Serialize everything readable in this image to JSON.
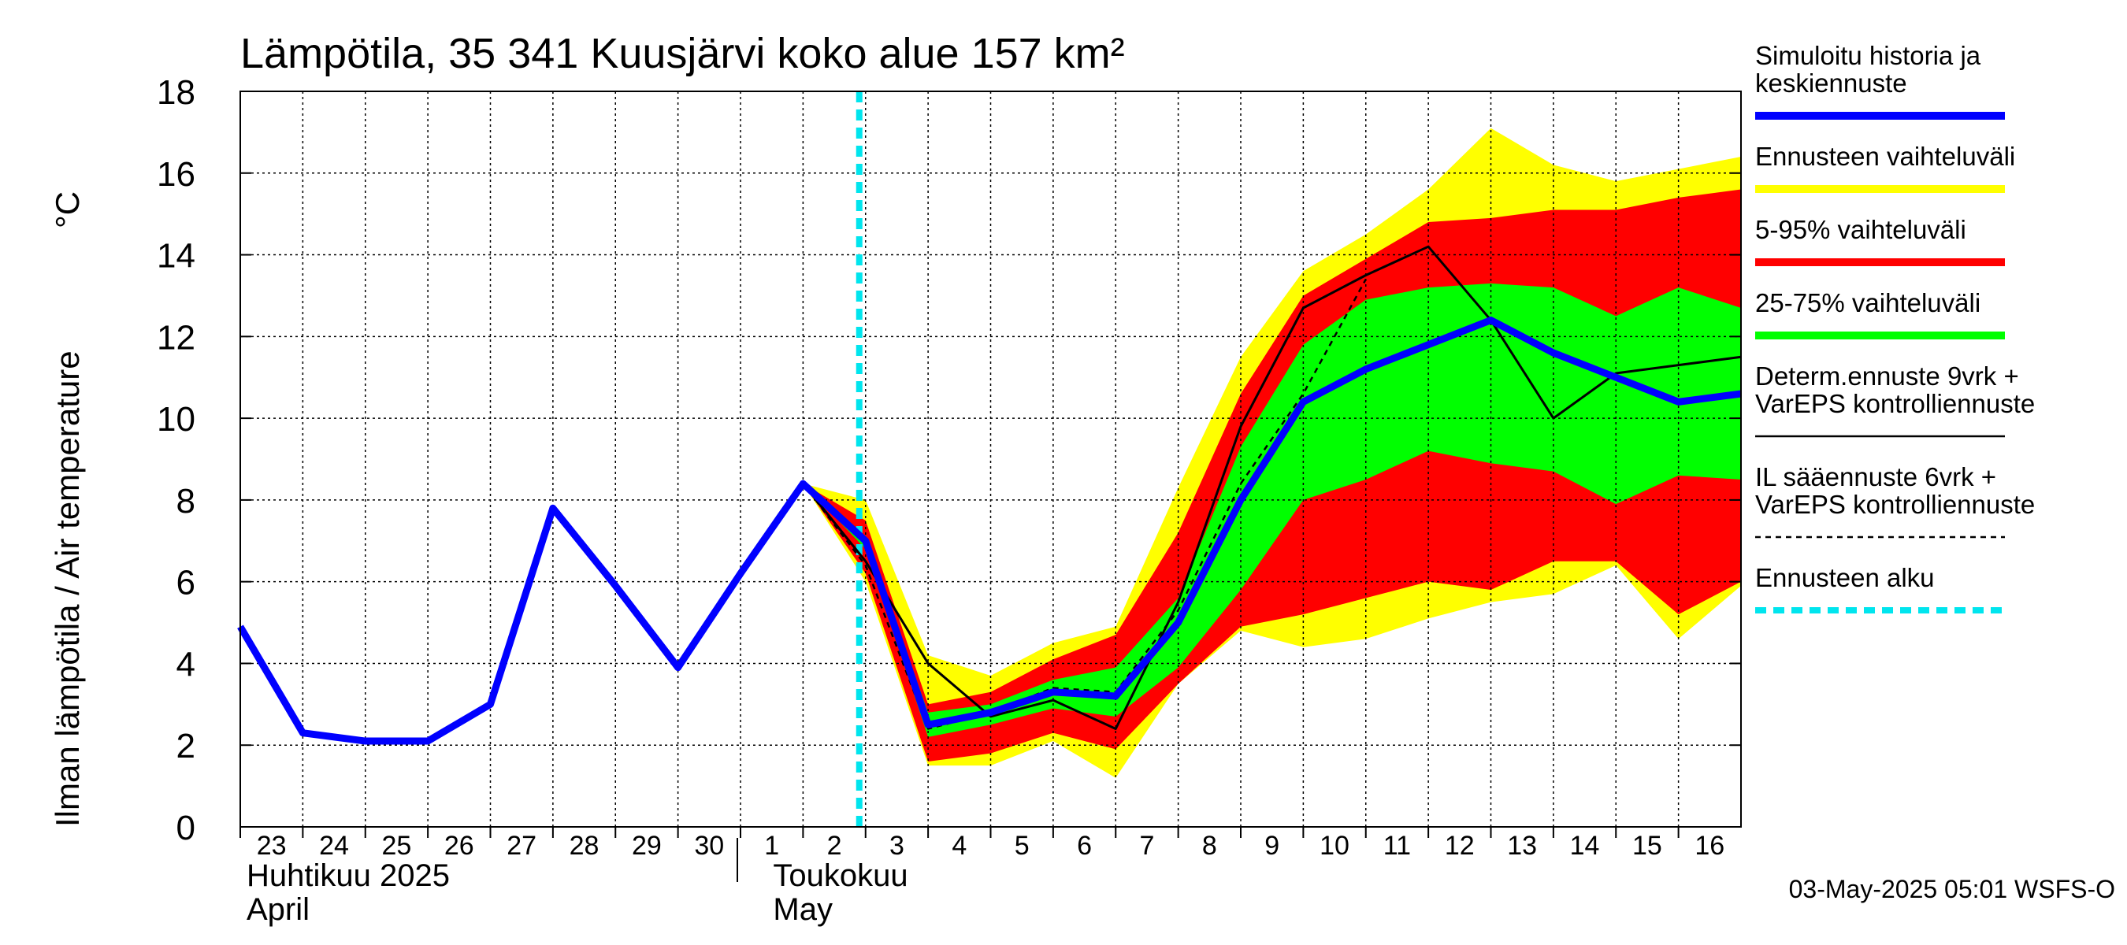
{
  "chart_data": {
    "type": "line",
    "title": "Lämpötila, 35 341 Kuusjärvi koko alue 157 km²",
    "ylabel": "Ilman lämpötila / Air temperature",
    "yunit": "°C",
    "ylim": [
      0,
      18
    ],
    "yticks": [
      0,
      2,
      4,
      6,
      8,
      10,
      12,
      14,
      16,
      18
    ],
    "grid": true,
    "legend_position": "right",
    "x_tick_labels": [
      "23",
      "24",
      "25",
      "26",
      "27",
      "28",
      "29",
      "30",
      "1",
      "2",
      "3",
      "4",
      "5",
      "6",
      "7",
      "8",
      "9",
      "10",
      "11",
      "12",
      "13",
      "14",
      "15",
      "16"
    ],
    "month_labels": [
      {
        "fi": "Huhtikuu 2025",
        "en": "April"
      },
      {
        "fi": "Toukokuu",
        "en": "May"
      }
    ],
    "forecast_start": "2025-05-03",
    "x_dates": [
      "2025-04-23",
      "2025-04-24",
      "2025-04-25",
      "2025-04-26",
      "2025-04-27",
      "2025-04-28",
      "2025-04-29",
      "2025-04-30",
      "2025-05-01",
      "2025-05-02",
      "2025-05-03",
      "2025-05-04",
      "2025-05-05",
      "2025-05-06",
      "2025-05-07",
      "2025-05-08",
      "2025-05-09",
      "2025-05-10",
      "2025-05-11",
      "2025-05-12",
      "2025-05-13",
      "2025-05-14",
      "2025-05-15",
      "2025-05-16",
      "2025-05-17"
    ],
    "series": [
      {
        "name": "Simuloitu historia ja keskiennuste",
        "color": "#0000ff",
        "x": [
          "2025-04-23",
          "2025-04-24",
          "2025-04-25",
          "2025-04-26",
          "2025-04-27",
          "2025-04-28",
          "2025-04-29",
          "2025-04-30",
          "2025-05-01",
          "2025-05-02",
          "2025-05-03",
          "2025-05-04",
          "2025-05-05",
          "2025-05-06",
          "2025-05-07",
          "2025-05-08",
          "2025-05-09",
          "2025-05-10",
          "2025-05-11",
          "2025-05-12",
          "2025-05-13",
          "2025-05-14",
          "2025-05-15",
          "2025-05-16",
          "2025-05-17"
        ],
        "values": [
          4.9,
          2.3,
          2.1,
          2.1,
          3.0,
          7.8,
          5.9,
          3.9,
          6.2,
          8.4,
          7.0,
          2.5,
          2.8,
          3.3,
          3.2,
          5.0,
          8.0,
          10.4,
          11.2,
          11.8,
          12.4,
          11.6,
          11.0,
          10.4,
          10.6
        ]
      },
      {
        "name": "Determ.ennuste 9vrk + VarEPS kontrolliennuste",
        "color": "#000000",
        "x": [
          "2025-05-01",
          "2025-05-02",
          "2025-05-03",
          "2025-05-04",
          "2025-05-05",
          "2025-05-06",
          "2025-05-07",
          "2025-05-08",
          "2025-05-09",
          "2025-05-10",
          "2025-05-11",
          "2025-05-12",
          "2025-05-13",
          "2025-05-14",
          "2025-05-15",
          "2025-05-16",
          "2025-05-17"
        ],
        "values": [
          6.2,
          8.4,
          6.5,
          4.0,
          2.7,
          3.1,
          2.4,
          5.5,
          9.8,
          12.7,
          13.5,
          14.2,
          12.4,
          10.0,
          11.1,
          11.3,
          11.5
        ]
      },
      {
        "name": "IL sääennuste 6vrk + VarEPS kontrolliennuste",
        "color": "#000000",
        "dashed": true,
        "x": [
          "2025-05-02",
          "2025-05-03",
          "2025-05-04",
          "2025-05-05",
          "2025-05-06",
          "2025-05-07",
          "2025-05-08",
          "2025-05-09",
          "2025-05-10",
          "2025-05-11"
        ],
        "values": [
          8.4,
          6.4,
          2.4,
          2.8,
          3.4,
          3.3,
          5.3,
          8.4,
          10.6,
          13.4
        ]
      }
    ],
    "bands": [
      {
        "name": "Ennusteen vaihteluväli",
        "color": "#ffff00",
        "x": [
          "2025-05-02",
          "2025-05-03",
          "2025-05-04",
          "2025-05-05",
          "2025-05-06",
          "2025-05-07",
          "2025-05-08",
          "2025-05-09",
          "2025-05-10",
          "2025-05-11",
          "2025-05-12",
          "2025-05-13",
          "2025-05-14",
          "2025-05-15",
          "2025-05-16",
          "2025-05-17"
        ],
        "upper": [
          8.4,
          8.0,
          4.2,
          3.7,
          4.5,
          4.9,
          8.3,
          11.5,
          13.6,
          14.5,
          15.6,
          17.1,
          16.2,
          15.8,
          16.1,
          16.4
        ],
        "lower": [
          8.4,
          6.0,
          1.5,
          1.5,
          2.1,
          1.2,
          3.5,
          4.8,
          4.4,
          4.6,
          5.1,
          5.5,
          5.7,
          6.4,
          4.6,
          5.9
        ]
      },
      {
        "name": "5-95% vaihteluväli",
        "color": "#ff0000",
        "x": [
          "2025-05-02",
          "2025-05-03",
          "2025-05-04",
          "2025-05-05",
          "2025-05-06",
          "2025-05-07",
          "2025-05-08",
          "2025-05-09",
          "2025-05-10",
          "2025-05-11",
          "2025-05-12",
          "2025-05-13",
          "2025-05-14",
          "2025-05-15",
          "2025-05-16",
          "2025-05-17"
        ],
        "upper": [
          8.4,
          7.5,
          3.0,
          3.3,
          4.1,
          4.7,
          7.2,
          10.6,
          13.0,
          13.9,
          14.8,
          14.9,
          15.1,
          15.1,
          15.4,
          15.6
        ],
        "lower": [
          8.4,
          6.2,
          1.6,
          1.8,
          2.3,
          1.9,
          3.5,
          4.9,
          5.2,
          5.6,
          6.0,
          5.8,
          6.5,
          6.5,
          5.2,
          6.0
        ]
      },
      {
        "name": "25-75% vaihteluväli",
        "color": "#00ff00",
        "x": [
          "2025-05-02",
          "2025-05-03",
          "2025-05-04",
          "2025-05-05",
          "2025-05-06",
          "2025-05-07",
          "2025-05-08",
          "2025-05-09",
          "2025-05-10",
          "2025-05-11",
          "2025-05-12",
          "2025-05-13",
          "2025-05-14",
          "2025-05-15",
          "2025-05-16",
          "2025-05-17"
        ],
        "upper": [
          8.4,
          7.1,
          2.8,
          3.0,
          3.6,
          3.9,
          5.6,
          9.3,
          11.8,
          12.9,
          13.2,
          13.3,
          13.2,
          12.5,
          13.2,
          12.7
        ],
        "lower": [
          8.4,
          6.8,
          2.2,
          2.5,
          2.9,
          2.7,
          3.9,
          5.8,
          8.0,
          8.5,
          9.2,
          8.9,
          8.7,
          7.9,
          8.6,
          8.5
        ]
      }
    ],
    "legend": [
      {
        "label_lines": [
          "Simuloitu historia ja",
          "keskiennuste"
        ],
        "color": "#0000ff",
        "style": "thick"
      },
      {
        "label_lines": [
          "Ennusteen vaihteluväli"
        ],
        "color": "#ffff00",
        "style": "thick"
      },
      {
        "label_lines": [
          "5-95% vaihteluväli"
        ],
        "color": "#ff0000",
        "style": "thick"
      },
      {
        "label_lines": [
          "25-75% vaihteluväli"
        ],
        "color": "#00ff00",
        "style": "thick"
      },
      {
        "label_lines": [
          "Determ.ennuste 9vrk +",
          "VarEPS kontrolliennuste"
        ],
        "color": "#000000",
        "style": "thin"
      },
      {
        "label_lines": [
          "IL sääennuste 6vrk  +",
          "  VarEPS kontrolliennuste"
        ],
        "color": "#000000",
        "style": "dashed"
      },
      {
        "label_lines": [
          "Ennusteen alku"
        ],
        "color": "#00e5ee",
        "style": "cyan-dashed"
      }
    ],
    "timestamp": "03-May-2025 05:01 WSFS-O"
  }
}
